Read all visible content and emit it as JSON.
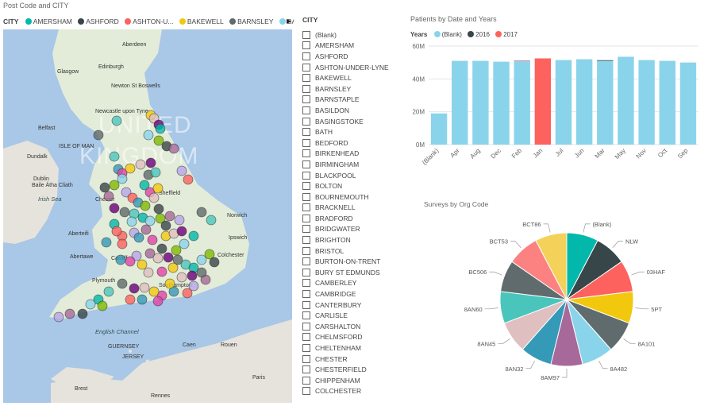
{
  "map_visual": {
    "title": "Post Code and CITY",
    "legend_label": "CITY",
    "legend_items": [
      {
        "label": "AMERSHAM",
        "color": "#01b8aa"
      },
      {
        "label": "ASHFORD",
        "color": "#374649"
      },
      {
        "label": "ASHTON-U...",
        "color": "#fd625e"
      },
      {
        "label": "BAKEWELL",
        "color": "#f2c80f"
      },
      {
        "label": "BARNSLEY",
        "color": "#5f6b6d"
      },
      {
        "label": "BARNSTAPLE",
        "color": "#8ad4eb"
      }
    ],
    "country_label_1": "UNITED",
    "country_label_2": "KINGDOM",
    "places": {
      "aberdeen": "Aberdeen",
      "glasgow": "Glasgow",
      "edinburgh": "Edinburgh",
      "newton": "Newton St Boswells",
      "newcastle": "Newcastle upon Tyne",
      "belfast": "Belfast",
      "isleofman": "ISLE OF MAN",
      "dundalk": "Dundalk",
      "dublin": "Dublin",
      "baileatha": "Baile Átha Cliath",
      "irishsea": "Irish Sea",
      "chester": "Chester",
      "sheffield": "Sheffield",
      "norwich": "Norwich",
      "ipswich": "Ipswich",
      "aberteifi": "Aberteifi",
      "aberdawe": "Abertawe",
      "cardiff": "Cardiff",
      "colchester": "Colchester",
      "southampton": "Southampton",
      "englishchannel": "English Channel",
      "guernsey": "GUERNSEY",
      "jersey": "JERSEY",
      "caen": "Caen",
      "rouen": "Rouen",
      "brest": "Brest",
      "rennes": "Rennes",
      "paris": "Paris",
      "plymouth": "Plymouth"
    }
  },
  "city_slicer": {
    "header": "CITY",
    "items": [
      "(Blank)",
      "AMERSHAM",
      "ASHFORD",
      "ASHTON-UNDER-LYNE",
      "BAKEWELL",
      "BARNSLEY",
      "BARNSTAPLE",
      "BASILDON",
      "BASINGSTOKE",
      "BATH",
      "BEDFORD",
      "BIRKENHEAD",
      "BIRMINGHAM",
      "BLACKPOOL",
      "BOLTON",
      "BOURNEMOUTH",
      "BRACKNELL",
      "BRADFORD",
      "BRIDGWATER",
      "BRIGHTON",
      "BRISTOL",
      "BURTON-ON-TRENT",
      "BURY ST EDMUNDS",
      "CAMBERLEY",
      "CAMBRIDGE",
      "CANTERBURY",
      "CARLISLE",
      "CARSHALTON",
      "CHELMSFORD",
      "CHELTENHAM",
      "CHESTER",
      "CHESTERFIELD",
      "CHIPPENHAM",
      "COLCHESTER"
    ]
  },
  "bar_chart": {
    "title": "Patients by Date and Years",
    "legend_label": "Years",
    "legend_items": [
      {
        "label": "(Blank)",
        "color": "#8ad4eb"
      },
      {
        "label": "2016",
        "color": "#374649"
      },
      {
        "label": "2017",
        "color": "#fd625e"
      }
    ]
  },
  "pie_chart": {
    "title": "Surveys by Org Code"
  },
  "chart_data": [
    {
      "type": "bar",
      "title": "Patients by Date and Years",
      "categories": [
        "(Blank)",
        "Apr",
        "Aug",
        "Dec",
        "Feb",
        "Jan",
        "Jul",
        "Jun",
        "Mar",
        "May",
        "Nov",
        "Oct",
        "Sep"
      ],
      "series": [
        {
          "name": "(Blank)",
          "color": "#8ad4eb",
          "values": [
            19,
            51,
            51,
            50.5,
            51,
            0,
            51.5,
            52,
            51,
            53.5,
            51.5,
            51,
            50
          ]
        },
        {
          "name": "2016",
          "color": "#374649",
          "values": [
            0,
            0,
            0,
            0,
            0,
            0,
            0,
            0,
            0.4,
            0,
            0,
            0,
            0
          ]
        },
        {
          "name": "2017",
          "color": "#fd625e",
          "values": [
            0,
            0,
            0,
            0,
            0.3,
            52.5,
            0,
            0,
            0,
            0,
            0,
            0,
            0
          ]
        }
      ],
      "y_ticks": [
        "0M",
        "20M",
        "40M",
        "60M"
      ],
      "ylim": [
        0,
        60
      ],
      "grid": true,
      "legend": "top-left"
    },
    {
      "type": "pie",
      "title": "Surveys by Org Code",
      "slices": [
        {
          "label": "(Blank)",
          "value": 1,
          "color": "#01b8aa"
        },
        {
          "label": "NLW",
          "value": 1,
          "color": "#374649"
        },
        {
          "label": "03HAF",
          "value": 1,
          "color": "#fd625e"
        },
        {
          "label": "5PT",
          "value": 1,
          "color": "#f2c80f"
        },
        {
          "label": "8A101",
          "value": 1,
          "color": "#5f6b6d"
        },
        {
          "label": "8A482",
          "value": 1,
          "color": "#8ad4eb"
        },
        {
          "label": "8AM97",
          "value": 1,
          "color": "#a66999"
        },
        {
          "label": "8AN32",
          "value": 1,
          "color": "#3599b8"
        },
        {
          "label": "8AN45",
          "value": 1,
          "color": "#dfbfbf"
        },
        {
          "label": "8AN60",
          "value": 1,
          "color": "#4ac5bb"
        },
        {
          "label": "BC506",
          "value": 1,
          "color": "#5f6b6d"
        },
        {
          "label": "BCT53",
          "value": 1,
          "color": "#fb8281"
        },
        {
          "label": "BCT86",
          "value": 1,
          "color": "#f4d25a"
        }
      ],
      "legend": "none"
    }
  ]
}
